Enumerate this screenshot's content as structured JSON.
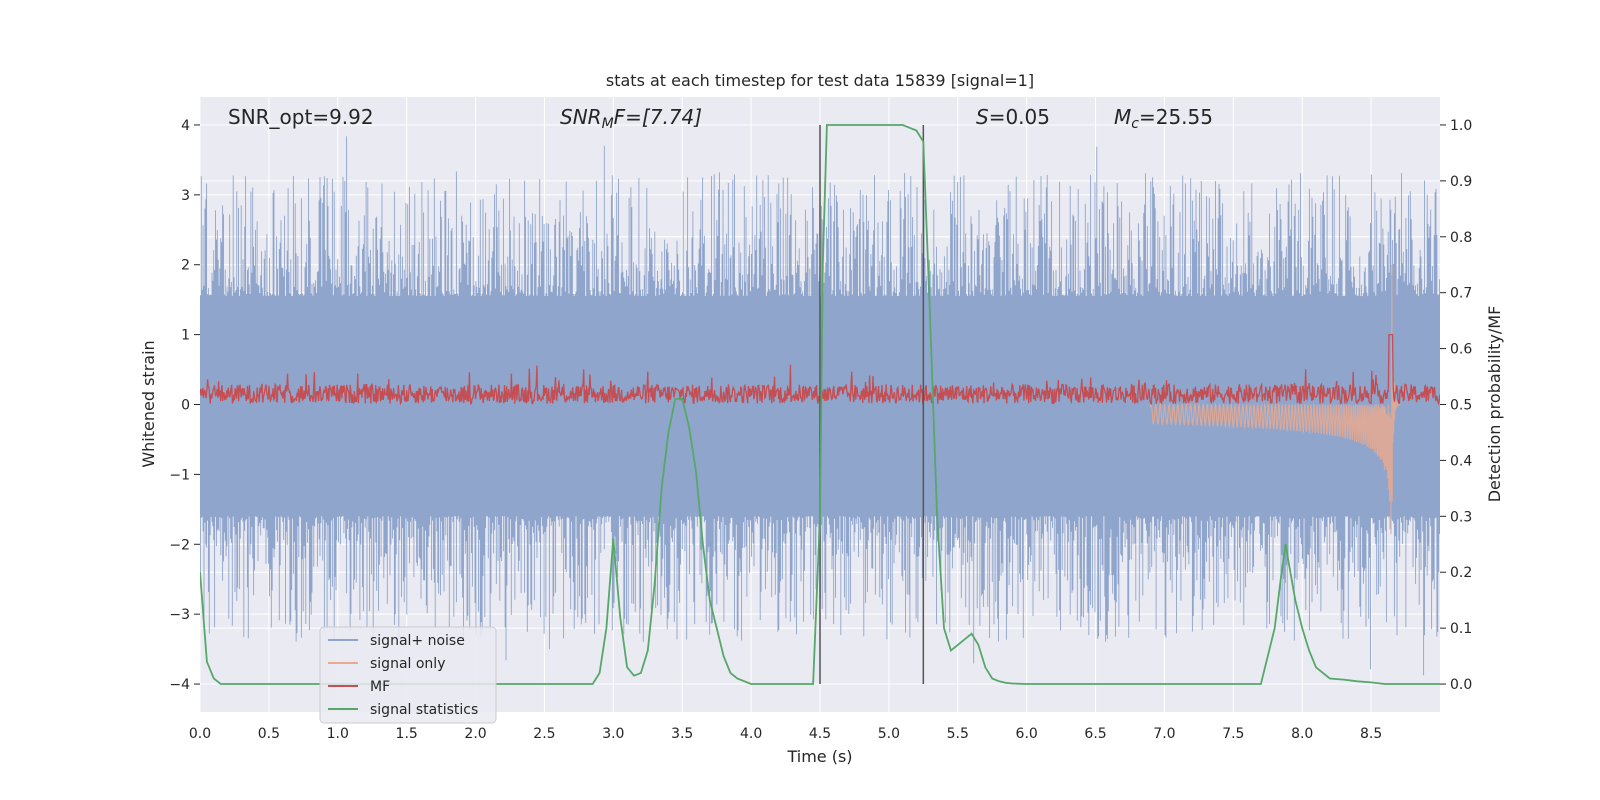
{
  "chart_data": {
    "type": "line",
    "title": "stats at each timestep for test data 15839 [signal=1]",
    "xlabel": "Time (s)",
    "ylabel_left": "Whitened strain",
    "ylabel_right": "Detection probability/MF",
    "xlim": [
      0.0,
      9.0
    ],
    "ylim_left": [
      -4.4,
      4.4
    ],
    "ylim_right": [
      -0.05,
      1.05
    ],
    "xticks": [
      "0.0",
      "0.5",
      "1.0",
      "1.5",
      "2.0",
      "2.5",
      "3.0",
      "3.5",
      "4.0",
      "4.5",
      "5.0",
      "5.5",
      "6.0",
      "6.5",
      "7.0",
      "7.5",
      "8.0",
      "8.5"
    ],
    "xtick_values": [
      0.0,
      0.5,
      1.0,
      1.5,
      2.0,
      2.5,
      3.0,
      3.5,
      4.0,
      4.5,
      5.0,
      5.5,
      6.0,
      6.5,
      7.0,
      7.5,
      8.0,
      8.5
    ],
    "yticks_left": [
      "−4",
      "−3",
      "−2",
      "−1",
      "0",
      "1",
      "2",
      "3",
      "4"
    ],
    "ytick_values_left": [
      -4,
      -3,
      -2,
      -1,
      0,
      1,
      2,
      3,
      4
    ],
    "yticks_right": [
      "0.0",
      "0.1",
      "0.2",
      "0.3",
      "0.4",
      "0.5",
      "0.6",
      "0.7",
      "0.8",
      "0.9",
      "1.0"
    ],
    "ytick_values_right": [
      0.0,
      0.1,
      0.2,
      0.3,
      0.4,
      0.5,
      0.6,
      0.7,
      0.8,
      0.9,
      1.0
    ],
    "grid": true,
    "legend_position": "lower-left",
    "annotations": {
      "snr_opt": "SNR_opt=9.92",
      "snr_mf_base": "SNR",
      "snr_mf_sub": "M",
      "snr_mf_rest": "F=[7.74]",
      "s_italic": "S",
      "s_rest": "=0.05",
      "mc_base": "M",
      "mc_sub": "c",
      "mc_rest": "=25.55"
    },
    "vlines": [
      4.5,
      5.25
    ],
    "noise_band": {
      "upper": 1.55,
      "lower": -1.6,
      "peak_max": 3.9,
      "peak_min": -4.0
    },
    "series": [
      {
        "name": "signal+ noise",
        "color": "#8fa5cc"
      },
      {
        "name": "signal only",
        "color": "#e8a98f",
        "chirp_end": 8.65,
        "chirp_peak": 2.3
      },
      {
        "name": "MF",
        "color": "#c44e52"
      },
      {
        "name": "signal statistics",
        "color": "#55a868",
        "x": [
          0.0,
          0.05,
          0.1,
          0.15,
          0.2,
          0.3,
          0.5,
          1.0,
          1.5,
          2.0,
          2.5,
          2.7,
          2.85,
          2.9,
          2.95,
          3.0,
          3.05,
          3.1,
          3.15,
          3.2,
          3.25,
          3.3,
          3.35,
          3.4,
          3.45,
          3.5,
          3.55,
          3.6,
          3.65,
          3.7,
          3.75,
          3.8,
          3.85,
          3.9,
          4.0,
          4.1,
          4.3,
          4.45,
          4.5,
          4.52,
          4.55,
          4.6,
          4.8,
          5.0,
          5.1,
          5.2,
          5.25,
          5.3,
          5.35,
          5.4,
          5.45,
          5.5,
          5.55,
          5.6,
          5.65,
          5.7,
          5.75,
          5.8,
          5.85,
          5.9,
          6.0,
          6.2,
          6.5,
          7.0,
          7.5,
          7.7,
          7.8,
          7.85,
          7.88,
          7.9,
          7.95,
          8.0,
          8.05,
          8.1,
          8.15,
          8.2,
          8.3,
          8.4,
          8.5,
          8.6,
          8.7,
          9.0
        ],
        "y": [
          0.2,
          0.04,
          0.01,
          0.0,
          0.0,
          0.0,
          0.0,
          0.0,
          0.0,
          0.0,
          0.0,
          0.0,
          0.0,
          0.02,
          0.1,
          0.26,
          0.12,
          0.03,
          0.015,
          0.02,
          0.06,
          0.18,
          0.35,
          0.45,
          0.51,
          0.51,
          0.46,
          0.38,
          0.25,
          0.15,
          0.1,
          0.05,
          0.02,
          0.01,
          0.0,
          0.0,
          0.0,
          0.0,
          0.3,
          0.75,
          1.0,
          1.0,
          1.0,
          1.0,
          1.0,
          0.99,
          0.97,
          0.65,
          0.3,
          0.1,
          0.06,
          0.07,
          0.08,
          0.09,
          0.07,
          0.03,
          0.01,
          0.005,
          0.002,
          0.001,
          0.0,
          0.0,
          0.0,
          0.0,
          0.0,
          0.0,
          0.1,
          0.2,
          0.25,
          0.22,
          0.15,
          0.1,
          0.06,
          0.03,
          0.02,
          0.01,
          0.008,
          0.005,
          0.003,
          0.0,
          0.0,
          0.0
        ]
      }
    ]
  }
}
